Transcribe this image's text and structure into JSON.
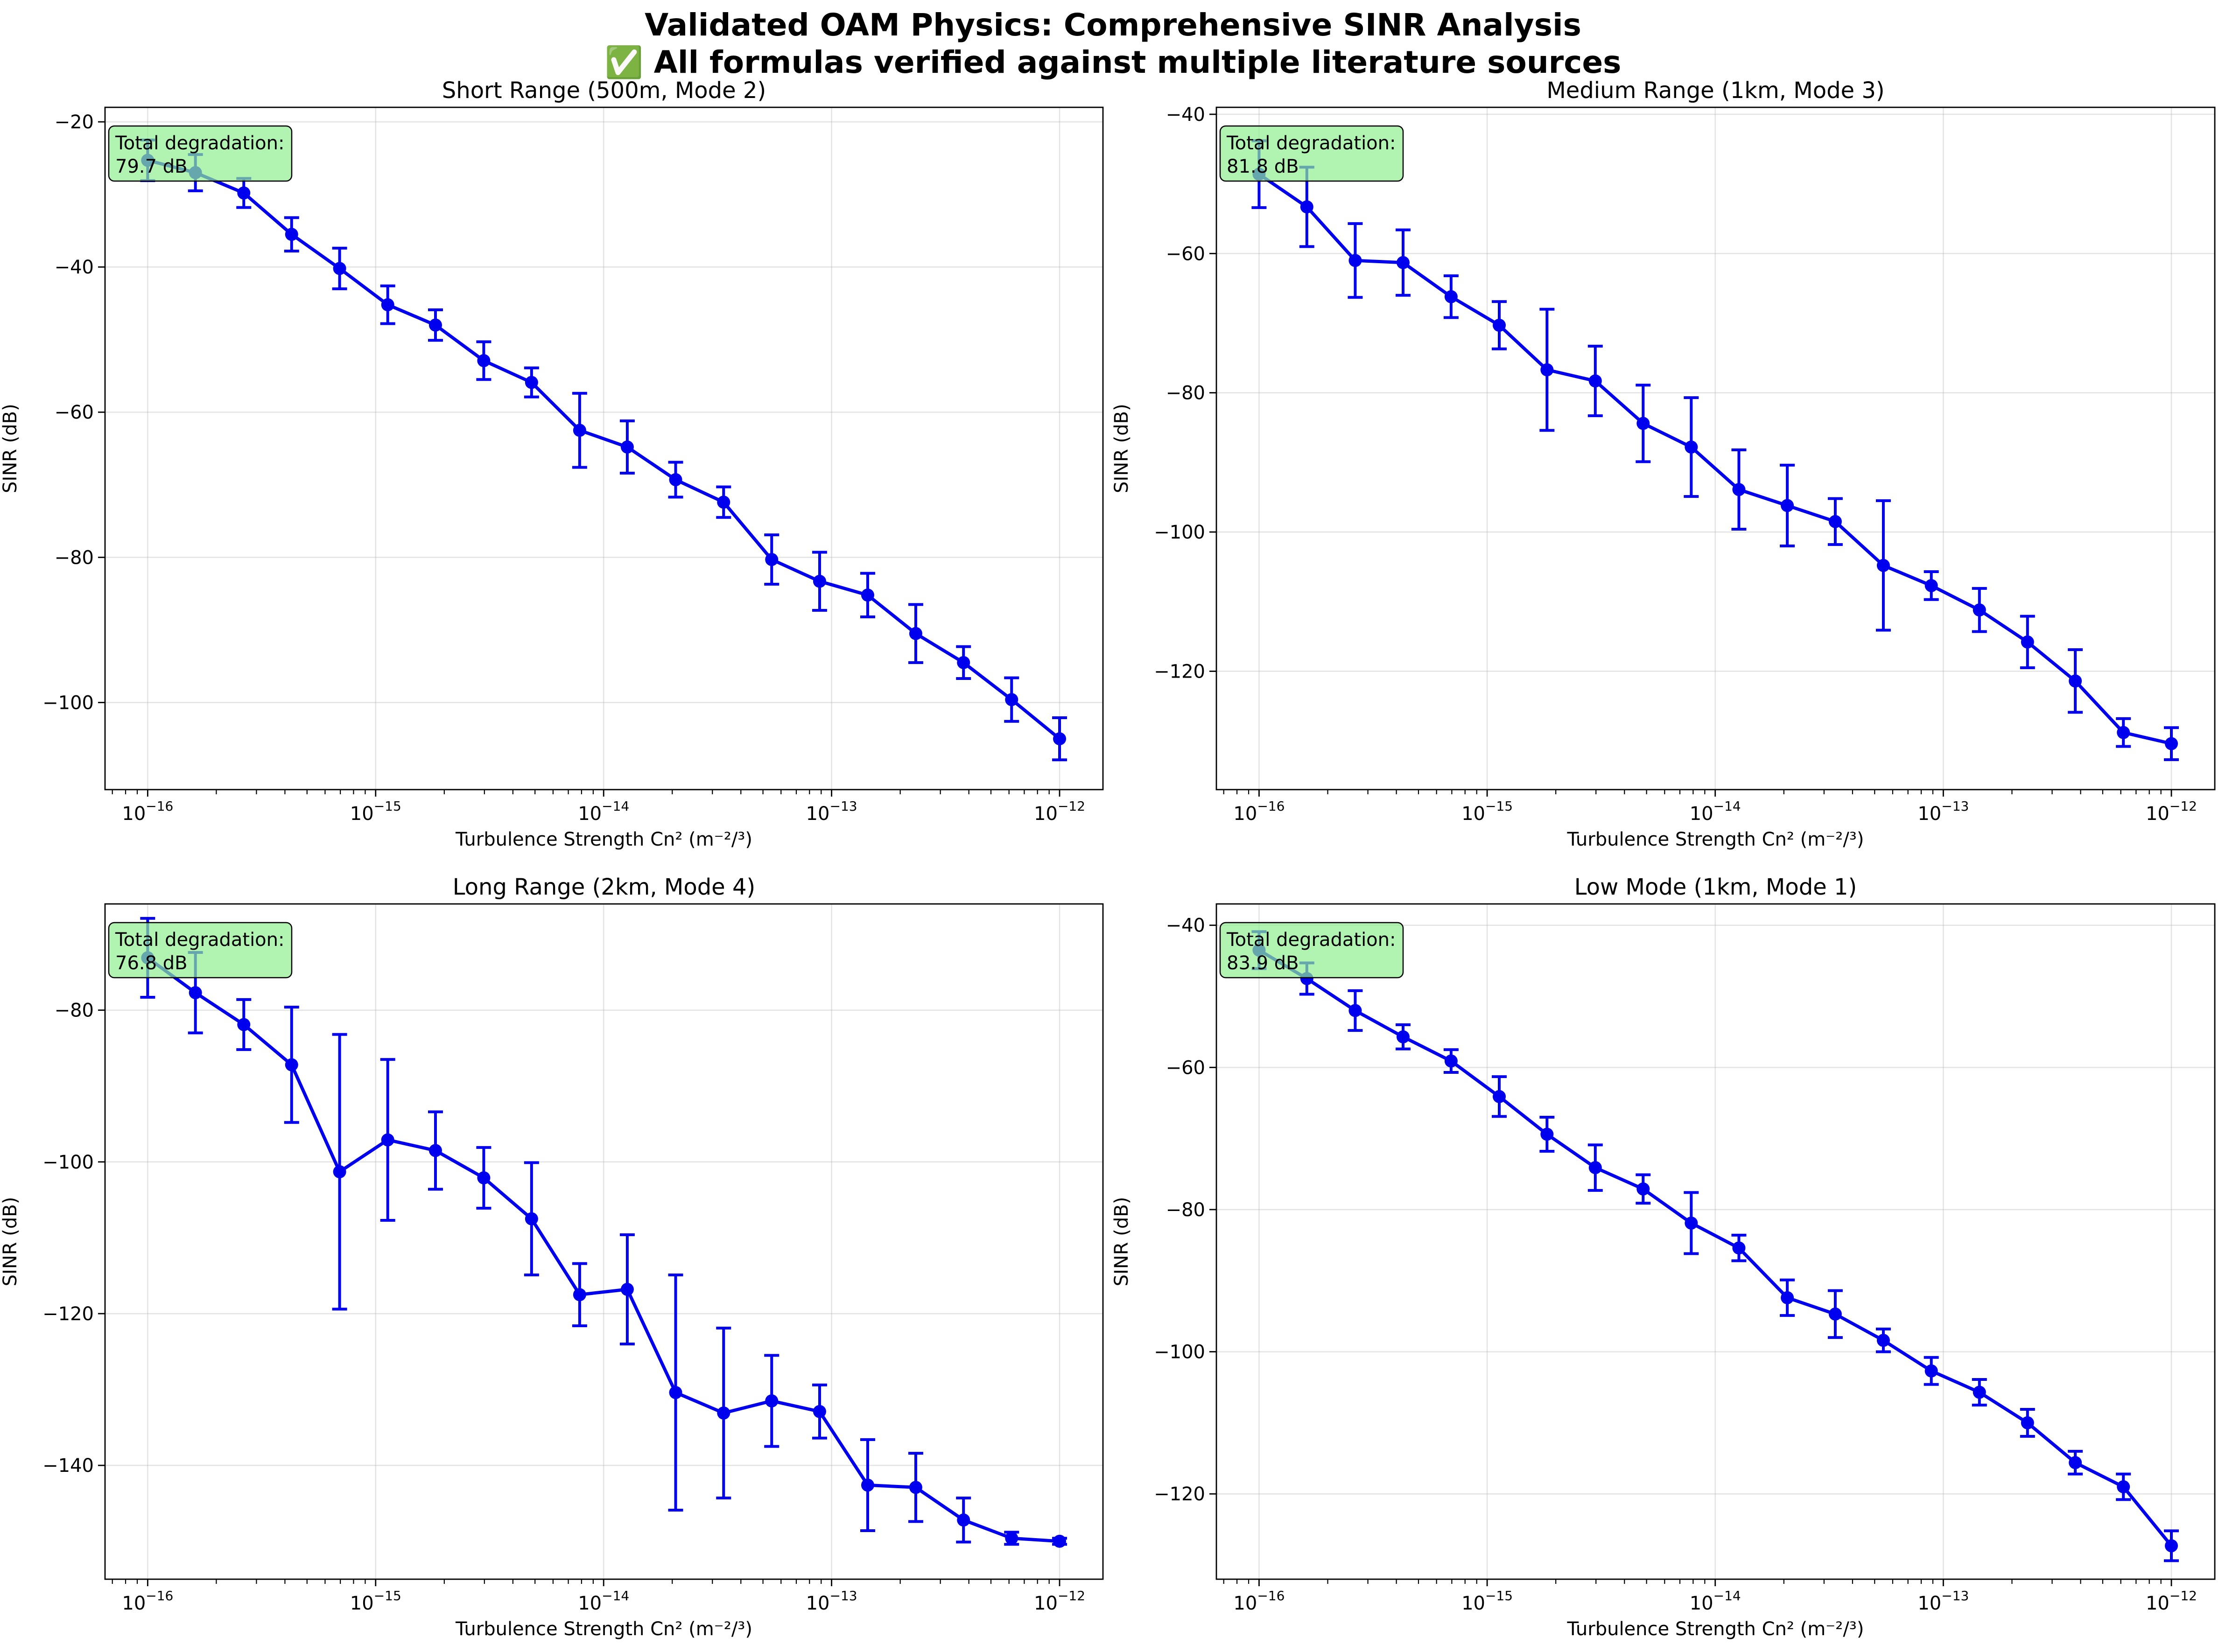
{
  "figure": {
    "title_line1": "Validated OAM Physics: Comprehensive SINR Analysis",
    "title_line2": "✅ All formulas verified against multiple literature sources"
  },
  "chart_data": [
    {
      "type": "line",
      "title": "Short Range (500m, Mode 2)",
      "xlabel": "Turbulence Strength Cn² (m⁻²/³)",
      "ylabel": "SINR (dB)",
      "xscale": "log",
      "xlim": [
        6.5e-17,
        1.55e-12
      ],
      "ylim": [
        -112,
        -18
      ],
      "yticks": [
        -100,
        -80,
        -60,
        -40,
        -20
      ],
      "yticklabels": [
        "−100",
        "−80",
        "−60",
        "−40",
        "−20"
      ],
      "xticks": [
        -16,
        -15,
        -14,
        -13,
        -12
      ],
      "grid": true,
      "color": "#0000ee",
      "annotation": {
        "line1": "Total degradation:",
        "line2": "79.7 dB",
        "position": "top-left"
      },
      "x": [
        1e-16,
        1.62e-16,
        2.64e-16,
        4.28e-16,
        6.95e-16,
        1.13e-15,
        1.83e-15,
        2.98e-15,
        4.83e-15,
        7.85e-15,
        1.27e-14,
        2.07e-14,
        3.36e-14,
        5.46e-14,
        8.86e-14,
        1.44e-13,
        2.34e-13,
        3.79e-13,
        6.16e-13,
        1e-12
      ],
      "y": [
        -25.3,
        -27.0,
        -29.8,
        -35.5,
        -40.2,
        -45.2,
        -48.0,
        -52.9,
        -55.9,
        -62.5,
        -64.8,
        -69.3,
        -72.4,
        -80.3,
        -83.3,
        -85.2,
        -90.5,
        -94.5,
        -99.6,
        -105.0
      ],
      "yerr": [
        2.8,
        2.5,
        2.0,
        2.3,
        2.8,
        2.6,
        2.1,
        2.6,
        2.0,
        5.1,
        3.6,
        2.4,
        2.1,
        3.4,
        4.0,
        3.0,
        4.0,
        2.2,
        3.0,
        2.9
      ]
    },
    {
      "type": "line",
      "title": "Medium Range (1km, Mode 3)",
      "xlabel": "Turbulence Strength Cn² (m⁻²/³)",
      "ylabel": "SINR (dB)",
      "xscale": "log",
      "xlim": [
        6.5e-17,
        1.55e-12
      ],
      "ylim": [
        -137,
        -39
      ],
      "yticks": [
        -120,
        -100,
        -80,
        -60,
        -40
      ],
      "yticklabels": [
        "−120",
        "−100",
        "−80",
        "−60",
        "−40"
      ],
      "xticks": [
        -16,
        -15,
        -14,
        -13,
        -12
      ],
      "grid": true,
      "color": "#0000ee",
      "annotation": {
        "line1": "Total degradation:",
        "line2": "81.8 dB",
        "position": "top-left"
      },
      "x": [
        1e-16,
        1.62e-16,
        2.64e-16,
        4.28e-16,
        6.95e-16,
        1.13e-15,
        1.83e-15,
        2.98e-15,
        4.83e-15,
        7.85e-15,
        1.27e-14,
        2.07e-14,
        3.36e-14,
        5.46e-14,
        8.86e-14,
        1.44e-13,
        2.34e-13,
        3.79e-13,
        6.16e-13,
        1e-12
      ],
      "y": [
        -48.6,
        -53.3,
        -61.0,
        -61.3,
        -66.2,
        -70.3,
        -76.7,
        -78.3,
        -84.4,
        -87.8,
        -93.9,
        -96.2,
        -98.5,
        -104.8,
        -107.7,
        -111.2,
        -115.8,
        -121.4,
        -128.8,
        -130.4
      ],
      "yerr": [
        4.8,
        5.7,
        5.3,
        4.7,
        3.0,
        3.4,
        8.7,
        5.0,
        5.5,
        7.1,
        5.7,
        5.8,
        3.3,
        9.3,
        2.0,
        3.1,
        3.7,
        4.5,
        2.0,
        2.3
      ]
    },
    {
      "type": "line",
      "title": "Long Range (2km, Mode 4)",
      "xlabel": "Turbulence Strength Cn² (m⁻²/³)",
      "ylabel": "SINR (dB)",
      "xscale": "log",
      "xlim": [
        6.5e-17,
        1.55e-12
      ],
      "ylim": [
        -155,
        -66
      ],
      "yticks": [
        -140,
        -120,
        -100,
        -80
      ],
      "yticklabels": [
        "−140",
        "−120",
        "−100",
        "−80"
      ],
      "xticks": [
        -16,
        -15,
        -14,
        -13,
        -12
      ],
      "grid": true,
      "color": "#0000ee",
      "annotation": {
        "line1": "Total degradation:",
        "line2": "76.8 dB",
        "position": "top-left"
      },
      "x": [
        1e-16,
        1.62e-16,
        2.64e-16,
        4.28e-16,
        6.95e-16,
        1.13e-15,
        1.83e-15,
        2.98e-15,
        4.83e-15,
        7.85e-15,
        1.27e-14,
        2.07e-14,
        3.36e-14,
        5.46e-14,
        8.86e-14,
        1.44e-13,
        2.34e-13,
        3.79e-13,
        6.16e-13,
        1e-12
      ],
      "y": [
        -73.1,
        -77.7,
        -81.9,
        -87.2,
        -101.3,
        -97.1,
        -98.5,
        -102.1,
        -107.5,
        -117.5,
        -116.8,
        -130.4,
        -133.1,
        -131.5,
        -132.9,
        -142.6,
        -142.9,
        -147.2,
        -149.6,
        -150.0
      ],
      "yerr": [
        5.2,
        5.3,
        3.3,
        7.6,
        18.1,
        10.6,
        5.1,
        4.0,
        7.4,
        4.1,
        7.2,
        15.5,
        11.2,
        6.0,
        3.5,
        6.0,
        4.5,
        2.9,
        0.8,
        0.4
      ]
    },
    {
      "type": "line",
      "title": "Low Mode (1km, Mode 1)",
      "xlabel": "Turbulence Strength Cn² (m⁻²/³)",
      "ylabel": "SINR (dB)",
      "xscale": "log",
      "xlim": [
        6.5e-17,
        1.55e-12
      ],
      "ylim": [
        -132,
        -37
      ],
      "yticks": [
        -120,
        -100,
        -80,
        -60,
        -40
      ],
      "yticklabels": [
        "−120",
        "−100",
        "−80",
        "−60",
        "−40"
      ],
      "xticks": [
        -16,
        -15,
        -14,
        -13,
        -12
      ],
      "grid": true,
      "color": "#0000ee",
      "annotation": {
        "line1": "Total degradation:",
        "line2": "83.9 dB",
        "position": "top-left"
      },
      "x": [
        1e-16,
        1.62e-16,
        2.64e-16,
        4.28e-16,
        6.95e-16,
        1.13e-15,
        1.83e-15,
        2.98e-15,
        4.83e-15,
        7.85e-15,
        1.27e-14,
        2.07e-14,
        3.36e-14,
        5.46e-14,
        8.86e-14,
        1.44e-13,
        2.34e-13,
        3.79e-13,
        6.16e-13,
        1e-12
      ],
      "y": [
        -43.5,
        -47.5,
        -52.0,
        -55.7,
        -59.1,
        -64.1,
        -69.4,
        -74.1,
        -77.1,
        -81.9,
        -85.4,
        -92.4,
        -94.7,
        -98.4,
        -102.7,
        -105.7,
        -110.0,
        -115.6,
        -119.0,
        -127.3
      ],
      "yerr": [
        2.6,
        2.2,
        2.8,
        1.7,
        1.6,
        2.8,
        2.4,
        3.2,
        2.0,
        4.3,
        1.8,
        2.5,
        3.3,
        1.6,
        1.9,
        1.8,
        1.9,
        1.6,
        1.8,
        2.1
      ]
    }
  ]
}
